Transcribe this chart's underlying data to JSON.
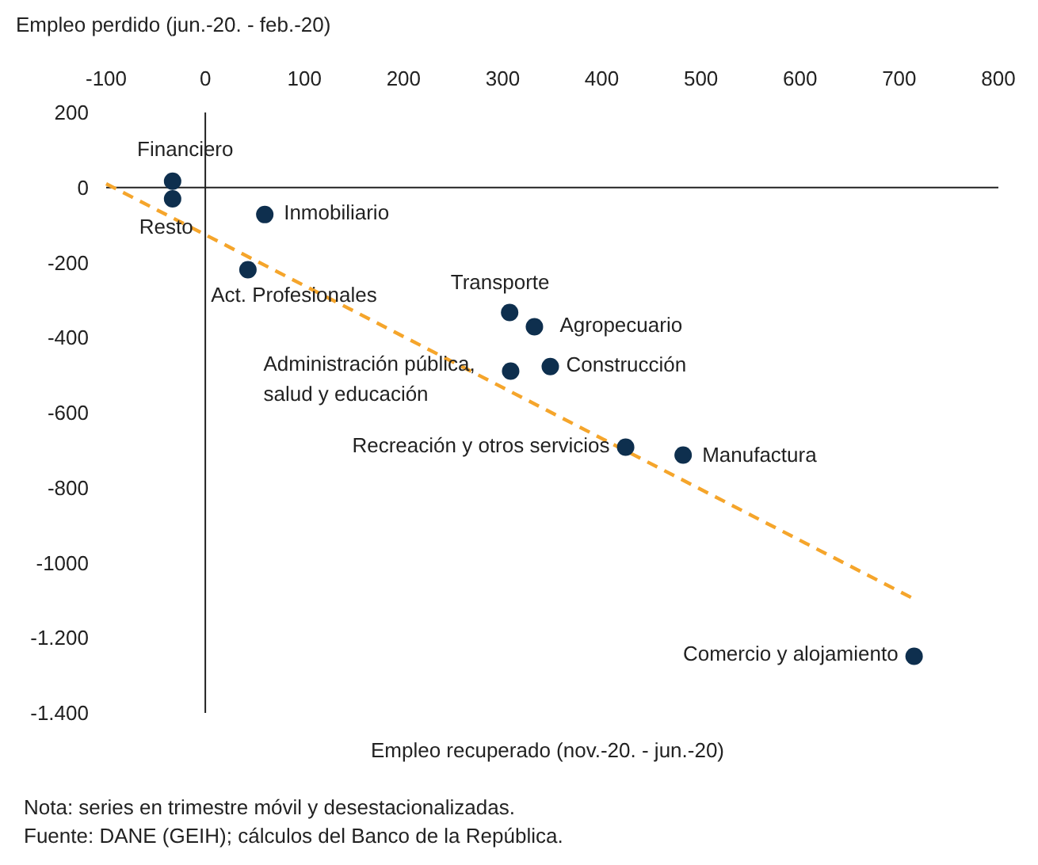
{
  "chart_data": {
    "type": "scatter",
    "ylabel": "Empleo perdido (jun.-20. - feb.-20)",
    "xlabel": "Empleo recuperado (nov.-20. - jun.-20)",
    "xlim": [
      -100,
      800
    ],
    "xticks": [
      -100,
      0,
      100,
      200,
      300,
      400,
      500,
      600,
      700,
      800
    ],
    "ylim": [
      -1400,
      200
    ],
    "yticks": [
      200,
      0,
      -200,
      -400,
      -600,
      -800,
      {
        "value": -1000,
        "label": "-1000"
      },
      {
        "value": -1200,
        "label": "-1.200"
      },
      {
        "value": -1400,
        "label": "-1.400"
      }
    ],
    "marker": "circle",
    "series": [
      {
        "type": "line",
        "color": "#f5a52b",
        "line_style": "dashed",
        "marker": "none",
        "x": [
          -100,
          714
        ],
        "values": [
          10,
          -1095
        ]
      },
      {
        "color": "#0e2f4e",
        "x": [
          -33,
          -33,
          60,
          43,
          307,
          332,
          308,
          348,
          424,
          482,
          715
        ],
        "values": [
          17,
          -30,
          -72,
          -219,
          -333,
          -371,
          -489,
          -477,
          -692,
          -713,
          -1249
        ]
      }
    ],
    "annotations": [
      {
        "text": "Financiero",
        "x": -33,
        "y": 17
      },
      {
        "text": "Resto",
        "x": -33,
        "y": -30
      },
      {
        "text": "Inmobiliario",
        "x": 60,
        "y": -72
      },
      {
        "text": "Act. Profesionales",
        "x": 43,
        "y": -219
      },
      {
        "text": "Transporte",
        "x": 307,
        "y": -333
      },
      {
        "text": "Agropecuario",
        "x": 332,
        "y": -371
      },
      {
        "text": "Administración pública,\nsalud y educación",
        "x": 308,
        "y": -489
      },
      {
        "text": "Construcción",
        "x": 348,
        "y": -477
      },
      {
        "text": "Recreación y otros servicios",
        "x": 424,
        "y": -692
      },
      {
        "text": "Manufactura",
        "x": 482,
        "y": -713
      },
      {
        "text": "Comercio y alojamiento",
        "x": 715,
        "y": -1249
      },
      "Nota: series en trimestre móvil y desestacionalizadas.",
      "Fuente: DANE (GEIH); cálculos del Banco de la República."
    ]
  }
}
